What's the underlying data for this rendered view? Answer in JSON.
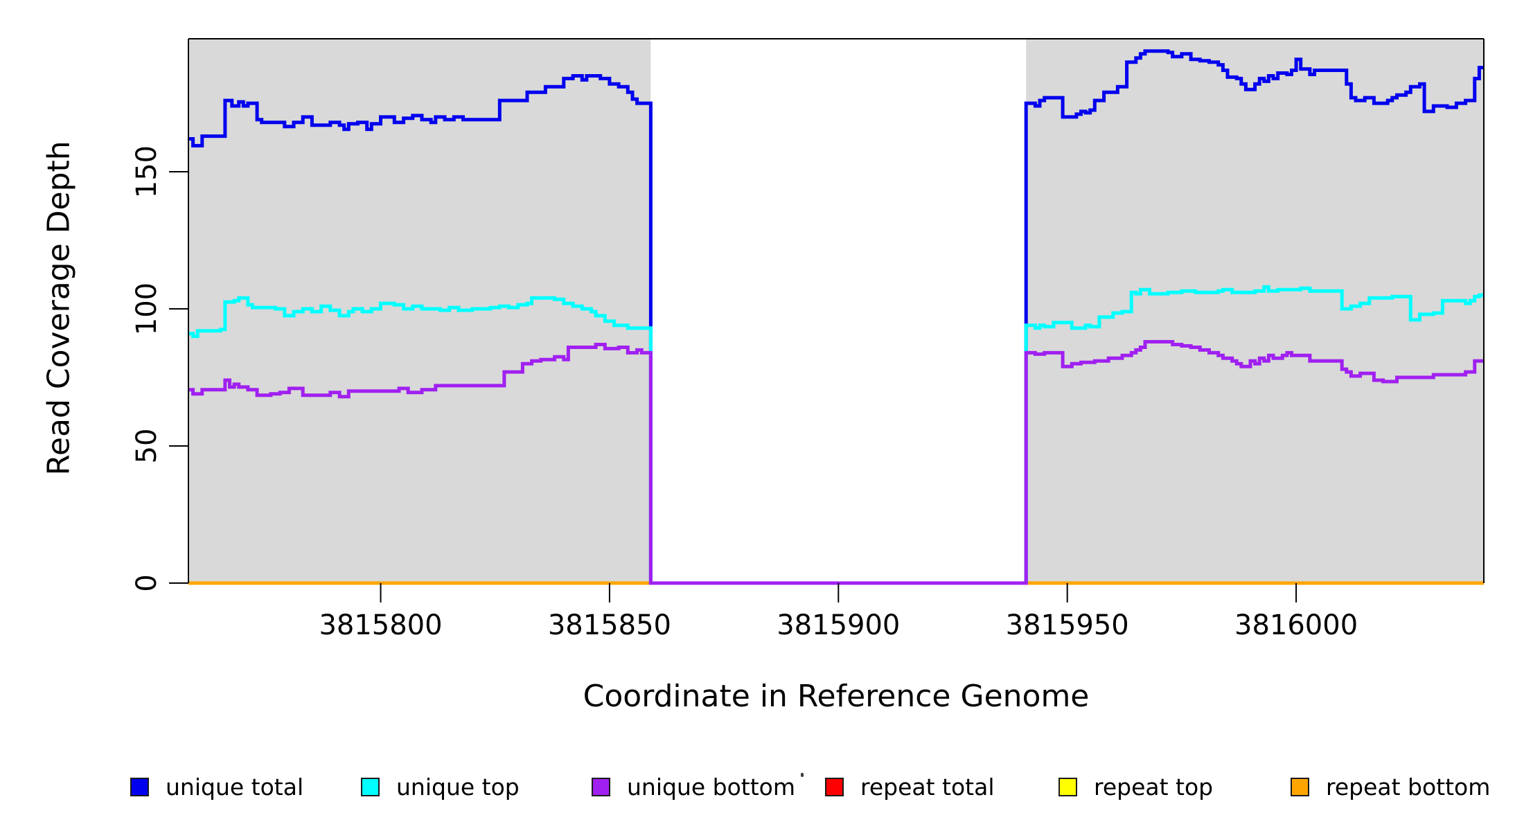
{
  "chart_data": {
    "type": "line",
    "subtype": "step",
    "title": "",
    "xlabel": "Coordinate in Reference Genome",
    "ylabel": "Read Coverage Depth",
    "xlim": [
      3815758,
      3816041
    ],
    "ylim": [
      0,
      198.5
    ],
    "grid": false,
    "x_ticks": [
      3815800,
      3815850,
      3815900,
      3815950,
      3816000
    ],
    "x_tick_labels": [
      "3815800",
      "3815850",
      "3815900",
      "3815950",
      "3816000"
    ],
    "y_ticks": [
      0,
      50,
      100,
      150
    ],
    "y_tick_labels": [
      "0",
      "50",
      "100",
      "150"
    ],
    "background_bands": {
      "color": "#d9d9d9",
      "ranges": [
        [
          3815758,
          3815859
        ],
        [
          3815941,
          3816041
        ]
      ],
      "note": "shaded covered regions; white gap 3815859-3815941 where unique coverage is 0"
    },
    "series": [
      {
        "name": "repeat total",
        "color": "#ff0000",
        "data": [
          [
            3815758,
            0
          ],
          [
            3816041,
            0
          ]
        ]
      },
      {
        "name": "repeat top",
        "color": "#ffff00",
        "data": [
          [
            3815758,
            0
          ],
          [
            3816041,
            0
          ]
        ]
      },
      {
        "name": "repeat bottom",
        "color": "#ffa500",
        "data": [
          [
            3815758,
            0
          ],
          [
            3816041,
            0
          ]
        ]
      },
      {
        "name": "unique total",
        "color": "#0000ee",
        "data": [
          [
            3815758,
            162
          ],
          [
            3815759,
            159.5
          ],
          [
            3815761,
            163
          ],
          [
            3815766,
            176
          ],
          [
            3815767.5,
            174
          ],
          [
            3815769,
            175.5
          ],
          [
            3815770,
            174
          ],
          [
            3815771,
            175
          ],
          [
            3815773,
            169
          ],
          [
            3815774,
            168
          ],
          [
            3815779,
            166.5
          ],
          [
            3815781,
            168
          ],
          [
            3815783,
            170
          ],
          [
            3815785,
            167
          ],
          [
            3815789,
            168
          ],
          [
            3815791,
            167
          ],
          [
            3815792,
            165.5
          ],
          [
            3815793,
            167.5
          ],
          [
            3815795,
            168
          ],
          [
            3815797,
            165.5
          ],
          [
            3815798,
            167.5
          ],
          [
            3815800,
            170
          ],
          [
            3815803,
            168
          ],
          [
            3815805,
            169.5
          ],
          [
            3815807,
            170.5
          ],
          [
            3815809,
            169
          ],
          [
            3815811,
            168
          ],
          [
            3815812,
            170
          ],
          [
            3815814,
            169
          ],
          [
            3815816,
            170
          ],
          [
            3815818,
            169
          ],
          [
            3815826,
            176
          ],
          [
            3815832,
            179
          ],
          [
            3815836,
            181
          ],
          [
            3815840,
            184
          ],
          [
            3815842,
            185
          ],
          [
            3815844,
            183.5
          ],
          [
            3815845,
            185
          ],
          [
            3815848,
            184
          ],
          [
            3815850,
            182
          ],
          [
            3815852,
            181
          ],
          [
            3815854,
            179
          ],
          [
            3815855,
            176.5
          ],
          [
            3815856,
            175
          ],
          [
            3815859,
            0
          ],
          [
            3815941,
            175
          ],
          [
            3815943,
            174
          ],
          [
            3815944,
            176
          ],
          [
            3815945,
            177
          ],
          [
            3815949,
            170
          ],
          [
            3815952,
            171
          ],
          [
            3815953,
            172
          ],
          [
            3815954,
            171.5
          ],
          [
            3815955,
            172.5
          ],
          [
            3815956,
            176
          ],
          [
            3815958,
            179
          ],
          [
            3815961,
            181
          ],
          [
            3815963,
            190
          ],
          [
            3815965,
            191.5
          ],
          [
            3815966,
            193
          ],
          [
            3815967,
            194
          ],
          [
            3815972,
            193.5
          ],
          [
            3815973,
            192
          ],
          [
            3815975,
            193
          ],
          [
            3815977,
            191
          ],
          [
            3815979,
            190.5
          ],
          [
            3815981,
            190
          ],
          [
            3815983,
            189
          ],
          [
            3815984,
            187
          ],
          [
            3815985,
            184.5
          ],
          [
            3815987,
            184
          ],
          [
            3815988,
            182
          ],
          [
            3815989,
            180
          ],
          [
            3815991,
            182
          ],
          [
            3815992,
            184
          ],
          [
            3815993,
            183
          ],
          [
            3815994,
            185
          ],
          [
            3815995,
            184
          ],
          [
            3815996,
            186
          ],
          [
            3815998,
            185.5
          ],
          [
            3815999,
            187
          ],
          [
            3816000,
            191
          ],
          [
            3816001,
            187.5
          ],
          [
            3816003,
            185.5
          ],
          [
            3816004,
            187
          ],
          [
            3816011,
            182
          ],
          [
            3816012,
            177
          ],
          [
            3816013,
            176
          ],
          [
            3816015,
            177
          ],
          [
            3816017,
            175
          ],
          [
            3816020,
            176
          ],
          [
            3816021,
            177
          ],
          [
            3816022,
            178
          ],
          [
            3816024,
            179
          ],
          [
            3816025,
            181
          ],
          [
            3816027,
            182
          ],
          [
            3816028,
            172
          ],
          [
            3816030,
            174
          ],
          [
            3816033,
            173.5
          ],
          [
            3816035,
            175
          ],
          [
            3816037,
            176
          ],
          [
            3816039,
            184
          ],
          [
            3816040,
            188
          ]
        ]
      },
      {
        "name": "unique top",
        "color": "#00ffff",
        "data": [
          [
            3815758,
            91
          ],
          [
            3815759,
            90
          ],
          [
            3815760,
            92
          ],
          [
            3815765,
            92.5
          ],
          [
            3815766,
            102.5
          ],
          [
            3815768,
            103
          ],
          [
            3815769,
            104
          ],
          [
            3815771,
            101.5
          ],
          [
            3815772,
            100.5
          ],
          [
            3815777,
            100
          ],
          [
            3815779,
            97.5
          ],
          [
            3815781,
            99
          ],
          [
            3815783,
            100
          ],
          [
            3815785,
            99
          ],
          [
            3815787,
            101
          ],
          [
            3815789,
            99.5
          ],
          [
            3815791,
            97.5
          ],
          [
            3815793,
            99
          ],
          [
            3815794,
            100
          ],
          [
            3815796,
            99
          ],
          [
            3815798,
            100
          ],
          [
            3815800,
            102
          ],
          [
            3815803,
            101.5
          ],
          [
            3815805,
            100
          ],
          [
            3815807,
            101
          ],
          [
            3815809,
            100
          ],
          [
            3815813,
            99.5
          ],
          [
            3815815,
            100.5
          ],
          [
            3815817,
            99.5
          ],
          [
            3815820,
            100
          ],
          [
            3815824,
            100.5
          ],
          [
            3815826,
            101
          ],
          [
            3815828,
            100.5
          ],
          [
            3815830,
            101.5
          ],
          [
            3815832,
            102
          ],
          [
            3815833,
            104
          ],
          [
            3815838,
            103.5
          ],
          [
            3815840,
            102
          ],
          [
            3815842,
            101
          ],
          [
            3815844,
            100
          ],
          [
            3815846,
            99
          ],
          [
            3815847,
            97.5
          ],
          [
            3815849,
            95.5
          ],
          [
            3815851,
            94
          ],
          [
            3815854,
            93
          ],
          [
            3815859,
            0
          ],
          [
            3815941,
            94
          ],
          [
            3815943,
            93
          ],
          [
            3815944,
            94
          ],
          [
            3815945,
            93.5
          ],
          [
            3815947,
            95
          ],
          [
            3815951,
            93
          ],
          [
            3815954,
            94
          ],
          [
            3815955,
            93.5
          ],
          [
            3815957,
            97
          ],
          [
            3815960,
            98.5
          ],
          [
            3815962,
            99
          ],
          [
            3815964,
            106
          ],
          [
            3815965,
            105.5
          ],
          [
            3815966,
            107
          ],
          [
            3815968,
            105.5
          ],
          [
            3815972,
            106
          ],
          [
            3815975,
            106.5
          ],
          [
            3815978,
            106
          ],
          [
            3815983,
            106.5
          ],
          [
            3815984,
            107
          ],
          [
            3815986,
            106
          ],
          [
            3815991,
            106.5
          ],
          [
            3815993,
            108
          ],
          [
            3815994,
            106.5
          ],
          [
            3815996,
            107
          ],
          [
            3816001,
            107.5
          ],
          [
            3816003,
            106.5
          ],
          [
            3816009,
            106.5
          ],
          [
            3816010,
            100
          ],
          [
            3816012,
            101
          ],
          [
            3816014,
            102
          ],
          [
            3816016,
            104
          ],
          [
            3816019,
            104
          ],
          [
            3816021,
            104.5
          ],
          [
            3816025,
            96
          ],
          [
            3816027,
            98
          ],
          [
            3816030,
            98.5
          ],
          [
            3816032,
            103
          ],
          [
            3816035,
            103
          ],
          [
            3816037,
            102
          ],
          [
            3816038,
            103
          ],
          [
            3816039,
            104.5
          ],
          [
            3816040,
            105
          ]
        ]
      },
      {
        "name": "unique bottom",
        "color": "#a020f0",
        "data": [
          [
            3815758,
            70.5
          ],
          [
            3815759,
            69
          ],
          [
            3815761,
            70.5
          ],
          [
            3815765,
            70.5
          ],
          [
            3815766,
            74
          ],
          [
            3815767,
            71.5
          ],
          [
            3815768,
            72.5
          ],
          [
            3815769,
            71.5
          ],
          [
            3815771,
            70.5
          ],
          [
            3815773,
            68.5
          ],
          [
            3815776,
            69
          ],
          [
            3815778,
            69.5
          ],
          [
            3815780,
            71
          ],
          [
            3815783,
            68.5
          ],
          [
            3815789,
            69.5
          ],
          [
            3815791,
            68
          ],
          [
            3815793,
            70
          ],
          [
            3815800,
            70
          ],
          [
            3815804,
            71
          ],
          [
            3815806,
            69.5
          ],
          [
            3815809,
            70.5
          ],
          [
            3815812,
            72
          ],
          [
            3815826,
            72
          ],
          [
            3815827,
            77
          ],
          [
            3815831,
            80
          ],
          [
            3815833,
            81
          ],
          [
            3815835,
            81.5
          ],
          [
            3815838,
            82.5
          ],
          [
            3815840,
            81.5
          ],
          [
            3815841,
            86
          ],
          [
            3815845,
            86
          ],
          [
            3815847,
            87
          ],
          [
            3815849,
            85.5
          ],
          [
            3815852,
            86
          ],
          [
            3815854,
            84
          ],
          [
            3815856,
            85
          ],
          [
            3815857,
            84
          ],
          [
            3815859,
            0
          ],
          [
            3815941,
            84
          ],
          [
            3815943,
            83.5
          ],
          [
            3815945,
            84
          ],
          [
            3815949,
            79
          ],
          [
            3815951,
            80
          ],
          [
            3815953,
            80.5
          ],
          [
            3815956,
            81
          ],
          [
            3815959,
            82
          ],
          [
            3815962,
            83
          ],
          [
            3815964,
            84
          ],
          [
            3815965,
            85
          ],
          [
            3815966,
            86
          ],
          [
            3815967,
            88
          ],
          [
            3815971,
            88
          ],
          [
            3815973,
            87
          ],
          [
            3815975,
            86.5
          ],
          [
            3815977,
            86
          ],
          [
            3815979,
            85
          ],
          [
            3815981,
            84
          ],
          [
            3815983,
            83
          ],
          [
            3815984,
            82
          ],
          [
            3815986,
            81
          ],
          [
            3815987,
            80
          ],
          [
            3815988,
            79
          ],
          [
            3815990,
            81
          ],
          [
            3815991,
            80
          ],
          [
            3815992,
            82
          ],
          [
            3815993,
            81
          ],
          [
            3815994,
            83
          ],
          [
            3815995,
            82
          ],
          [
            3815997,
            83
          ],
          [
            3815998,
            84
          ],
          [
            3815999,
            83
          ],
          [
            3816003,
            81
          ],
          [
            3816009,
            81
          ],
          [
            3816010,
            78
          ],
          [
            3816011,
            77
          ],
          [
            3816012,
            75.5
          ],
          [
            3816014,
            76.5
          ],
          [
            3816017,
            74
          ],
          [
            3816019,
            73.5
          ],
          [
            3816022,
            75
          ],
          [
            3816028,
            75
          ],
          [
            3816030,
            76
          ],
          [
            3816035,
            76
          ],
          [
            3816037,
            77
          ],
          [
            3816039,
            81
          ],
          [
            3816040,
            81
          ]
        ]
      }
    ],
    "legend": {
      "position": "bottom",
      "entries": [
        {
          "label": "unique total",
          "color": "#0000ee"
        },
        {
          "label": "unique top",
          "color": "#00ffff"
        },
        {
          "label": "unique bottom",
          "color": "#a020f0"
        },
        {
          "label": "repeat total",
          "color": "#ff0000"
        },
        {
          "label": "repeat top",
          "color": "#ffff00"
        },
        {
          "label": "repeat bottom",
          "color": "#ffa500"
        }
      ]
    }
  }
}
